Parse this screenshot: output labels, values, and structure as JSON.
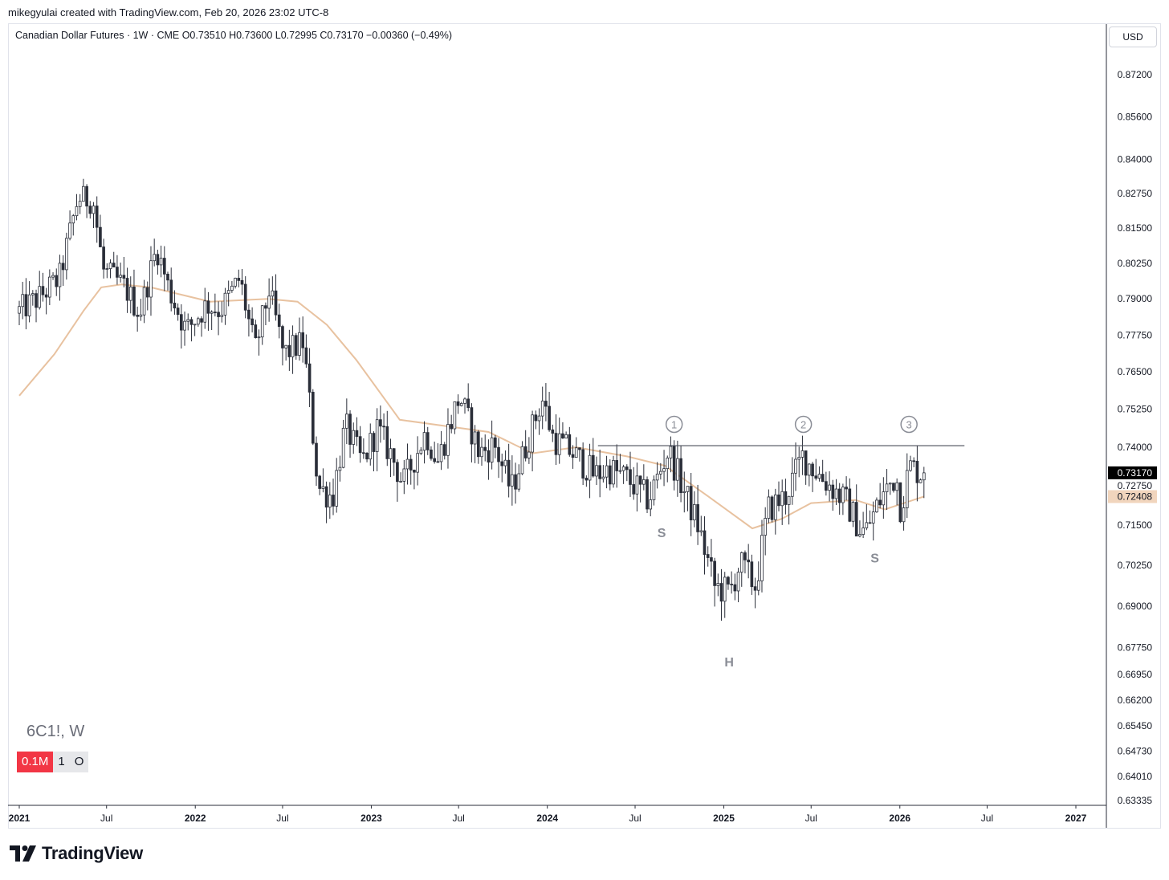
{
  "header": {
    "created_text": "mikegyulai created with TradingView.com, Feb 20, 2026 23:02 UTC-8"
  },
  "legend": {
    "text": "Canadian Dollar Futures · 1W · CME  O0.73510  H0.73600  L0.72995  C0.73170  −0.00360 (−0.49%)"
  },
  "currency": "USD",
  "ticker": "6C1!, W",
  "badges": [
    "0.1M",
    "1",
    "O"
  ],
  "brand": "TradingView",
  "colors": {
    "up_body": "#ffffff",
    "down_body": "#2a2e39",
    "wick": "#2a2e39",
    "ma": "#e8c2a0",
    "last_price_bg": "#000000",
    "ma_label_bg": "#f1d5bd",
    "annotation": "#8a8d96"
  },
  "chart_data": {
    "type": "candlestick",
    "symbol": "6C1!",
    "interval": "1W",
    "y_axis": {
      "scale": "log",
      "ticks": [
        "0.87200",
        "0.85600",
        "0.84000",
        "0.82750",
        "0.81500",
        "0.80250",
        "0.79000",
        "0.77750",
        "0.76500",
        "0.75250",
        "0.74000",
        "0.72750",
        "0.71500",
        "0.70250",
        "0.69000",
        "0.67750",
        "0.66950",
        "0.66200",
        "0.65450",
        "0.64730",
        "0.64010",
        "0.63335"
      ]
    },
    "x_axis": {
      "ticks": [
        {
          "label": "2021",
          "major": true
        },
        {
          "label": "Jul",
          "major": false
        },
        {
          "label": "2022",
          "major": true
        },
        {
          "label": "Jul",
          "major": false
        },
        {
          "label": "2023",
          "major": true
        },
        {
          "label": "Jul",
          "major": false
        },
        {
          "label": "2024",
          "major": true
        },
        {
          "label": "Jul",
          "major": false
        },
        {
          "label": "2025",
          "major": true
        },
        {
          "label": "Jul",
          "major": false
        },
        {
          "label": "2026",
          "major": true
        },
        {
          "label": "Jul",
          "major": false
        },
        {
          "label": "2027",
          "major": true
        }
      ]
    },
    "price_path": [
      [
        "2021-01-01",
        0.785
      ],
      [
        "2021-02-15",
        0.79
      ],
      [
        "2021-04-01",
        0.797
      ],
      [
        "2021-05-10",
        0.826
      ],
      [
        "2021-06-10",
        0.825
      ],
      [
        "2021-07-01",
        0.8
      ],
      [
        "2021-08-15",
        0.794
      ],
      [
        "2021-09-15",
        0.785
      ],
      [
        "2021-10-20",
        0.808
      ],
      [
        "2021-11-15",
        0.793
      ],
      [
        "2021-12-20",
        0.779
      ],
      [
        "2022-02-01",
        0.788
      ],
      [
        "2022-03-01",
        0.786
      ],
      [
        "2022-04-10",
        0.797
      ],
      [
        "2022-05-12",
        0.772
      ],
      [
        "2022-06-10",
        0.793
      ],
      [
        "2022-07-10",
        0.771
      ],
      [
        "2022-08-20",
        0.775
      ],
      [
        "2022-09-20",
        0.727
      ],
      [
        "2022-10-20",
        0.724
      ],
      [
        "2022-11-15",
        0.747
      ],
      [
        "2022-12-20",
        0.735
      ],
      [
        "2023-01-20",
        0.746
      ],
      [
        "2023-02-20",
        0.737
      ],
      [
        "2023-03-15",
        0.728
      ],
      [
        "2023-05-01",
        0.745
      ],
      [
        "2023-05-25",
        0.735
      ],
      [
        "2023-07-10",
        0.757
      ],
      [
        "2023-08-20",
        0.738
      ],
      [
        "2023-09-20",
        0.741
      ],
      [
        "2023-10-25",
        0.726
      ],
      [
        "2023-12-28",
        0.756
      ],
      [
        "2024-01-20",
        0.743
      ],
      [
        "2024-03-01",
        0.738
      ],
      [
        "2024-04-15",
        0.731
      ],
      [
        "2024-05-15",
        0.733
      ],
      [
        "2024-06-20",
        0.73
      ],
      [
        "2024-08-05",
        0.723
      ],
      [
        "2024-09-15",
        0.739
      ],
      [
        "2024-10-15",
        0.727
      ],
      [
        "2024-11-15",
        0.715
      ],
      [
        "2024-12-20",
        0.696
      ],
      [
        "2025-01-20",
        0.694
      ],
      [
        "2025-02-10",
        0.703
      ],
      [
        "2025-03-15",
        0.696
      ],
      [
        "2025-04-10",
        0.72
      ],
      [
        "2025-05-15",
        0.724
      ],
      [
        "2025-06-20",
        0.737
      ],
      [
        "2025-07-25",
        0.731
      ],
      [
        "2025-08-20",
        0.727
      ],
      [
        "2025-09-20",
        0.722
      ],
      [
        "2025-10-20",
        0.713
      ],
      [
        "2025-11-01",
        0.714
      ],
      [
        "2025-12-01",
        0.724
      ],
      [
        "2025-12-31",
        0.731
      ],
      [
        "2026-01-10",
        0.72
      ],
      [
        "2026-01-28",
        0.734
      ],
      [
        "2026-02-20",
        0.7317
      ]
    ],
    "moving_average": {
      "color": "#e8c2a0",
      "points": [
        [
          "2021-01-01",
          0.757
        ],
        [
          "2021-03-15",
          0.771
        ],
        [
          "2021-05-15",
          0.786
        ],
        [
          "2021-06-20",
          0.794
        ],
        [
          "2021-08-01",
          0.795
        ],
        [
          "2021-10-01",
          0.794
        ],
        [
          "2022-02-01",
          0.789
        ],
        [
          "2022-06-01",
          0.79
        ],
        [
          "2022-08-01",
          0.789
        ],
        [
          "2022-10-01",
          0.781
        ],
        [
          "2022-12-01",
          0.769
        ],
        [
          "2023-03-01",
          0.749
        ],
        [
          "2023-06-01",
          0.747
        ],
        [
          "2023-09-01",
          0.745
        ],
        [
          "2023-12-01",
          0.738
        ],
        [
          "2024-03-01",
          0.74
        ],
        [
          "2024-06-15",
          0.737
        ],
        [
          "2024-09-01",
          0.734
        ],
        [
          "2024-12-01",
          0.724
        ],
        [
          "2025-03-01",
          0.714
        ],
        [
          "2025-05-01",
          0.717
        ],
        [
          "2025-07-01",
          0.722
        ],
        [
          "2025-10-01",
          0.723
        ],
        [
          "2025-12-01",
          0.72
        ],
        [
          "2026-02-20",
          0.7241
        ]
      ]
    },
    "last_price": {
      "value": 0.7317,
      "label": "0.73170"
    },
    "ma_price": {
      "value": 0.72408,
      "label": "0.72408"
    },
    "neckline": {
      "price": 0.7405,
      "from": "2024-04-15",
      "to": "2026-05-15"
    },
    "annotations": [
      {
        "type": "circle",
        "text": "1",
        "date": "2024-09-20",
        "price": 0.7475
      },
      {
        "type": "circle",
        "text": "2",
        "date": "2025-06-15",
        "price": 0.7475
      },
      {
        "type": "circle",
        "text": "3",
        "date": "2026-01-20",
        "price": 0.7475
      },
      {
        "type": "text",
        "text": "S",
        "date": "2024-08-25",
        "price": 0.7128
      },
      {
        "type": "text",
        "text": "H",
        "date": "2025-01-12",
        "price": 0.6733
      },
      {
        "type": "text",
        "text": "S",
        "date": "2025-11-10",
        "price": 0.7049
      }
    ]
  }
}
